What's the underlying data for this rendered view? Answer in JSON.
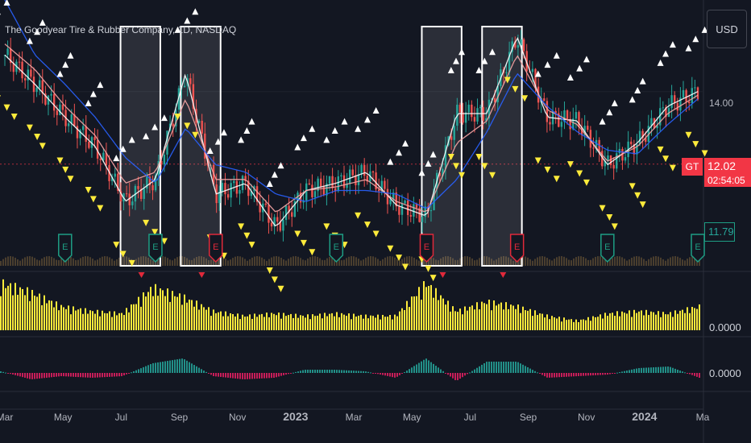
{
  "header": {
    "title": "The Goodyear Tire & Rubber Company, 1D, NASDAQ",
    "currency": "USD"
  },
  "price_axis": {
    "tick_label": "14.00",
    "bottom_scale_labels": [
      "0.0000",
      "0.0000"
    ],
    "badges": {
      "symbol": "GT",
      "last_price": "12.02",
      "countdown": "02:54:05",
      "ma_value": "11.79"
    }
  },
  "colors": {
    "background": "#131722",
    "candle_up": "#26a69a",
    "candle_down": "#ef5350",
    "volume": "#ffeb3b",
    "ma_white": "#ffffff",
    "ma_pink": "#f7a5a5",
    "ma_blue": "#2962ff",
    "earnings_green": "#1e9e84",
    "earnings_red": "#e0293a",
    "price_badge": "#f23645"
  },
  "chart_data": {
    "type": "line",
    "title": "The Goodyear Tire & Rubber Company, 1D, NASDAQ",
    "xlabel": "",
    "ylabel": "USD",
    "x_ticks": [
      "Mar",
      "May",
      "Jul",
      "Sep",
      "Nov",
      "2023",
      "Mar",
      "May",
      "Jul",
      "Sep",
      "Nov",
      "2024",
      "Ma"
    ],
    "y_ticks": [
      14.0
    ],
    "ylim": [
      9.2,
      16.5
    ],
    "x": [
      "2022-03",
      "2022-04",
      "2022-05",
      "2022-06",
      "2022-07",
      "2022-08",
      "2022-09",
      "2022-10",
      "2022-11",
      "2022-12",
      "2023-01",
      "2023-02",
      "2023-03",
      "2023-04",
      "2023-05",
      "2023-06",
      "2023-07",
      "2023-08",
      "2023-09",
      "2023-10",
      "2023-11",
      "2023-12",
      "2024-01",
      "2024-02"
    ],
    "series": [
      {
        "values": [
          15.0,
          14.2,
          13.3,
          12.5,
          11.0,
          11.6,
          14.5,
          11.2,
          11.5,
          10.3,
          11.3,
          11.5,
          11.8,
          10.9,
          10.6,
          13.4,
          13.4,
          15.5,
          13.3,
          13.2,
          12.0,
          12.6,
          13.6,
          14.0
        ]
      },
      {
        "values": [
          15.3,
          14.6,
          13.6,
          12.8,
          11.5,
          11.8,
          13.8,
          11.6,
          11.6,
          10.7,
          11.3,
          11.4,
          11.6,
          11.0,
          10.7,
          12.6,
          13.2,
          15.0,
          13.5,
          13.1,
          12.1,
          12.5,
          13.4,
          13.9
        ]
      },
      {
        "values": [
          16.5,
          15.0,
          14.2,
          13.3,
          12.2,
          11.5,
          13.0,
          12.0,
          11.8,
          11.2,
          11.0,
          11.3,
          11.3,
          11.2,
          10.8,
          11.6,
          12.9,
          14.5,
          13.6,
          12.9,
          12.4,
          12.3,
          13.1,
          13.8
        ]
      }
    ],
    "last_price": 12.02,
    "ma_last": 11.79,
    "highlight_boxes": [
      {
        "from": "2022-07",
        "to": "2022-08"
      },
      {
        "from": "2022-09",
        "to": "2022-10"
      },
      {
        "from": "2023-05",
        "to": "2023-06"
      },
      {
        "from": "2023-07",
        "to": "2023-08"
      }
    ],
    "earnings": [
      {
        "date": "2022-05",
        "kind": "green"
      },
      {
        "date": "2022-08",
        "kind": "green"
      },
      {
        "date": "2022-10",
        "kind": "red"
      },
      {
        "date": "2023-02",
        "kind": "green"
      },
      {
        "date": "2023-05",
        "kind": "red"
      },
      {
        "date": "2023-08",
        "kind": "red"
      },
      {
        "date": "2023-11",
        "kind": "green"
      },
      {
        "date": "2024-02",
        "kind": "green"
      }
    ],
    "volume_profile": [
      1.0,
      0.8,
      0.5,
      0.4,
      0.35,
      0.9,
      0.7,
      0.4,
      0.3,
      0.35,
      0.3,
      0.35,
      0.3,
      0.3,
      1.0,
      0.4,
      0.6,
      0.5,
      0.3,
      0.2,
      0.35,
      0.4,
      0.35,
      0.5
    ],
    "oscillator": [
      0.1,
      -0.4,
      -0.2,
      -0.3,
      -0.2,
      0.6,
      0.9,
      -0.2,
      -0.4,
      -0.3,
      0.2,
      0.2,
      0.1,
      -0.3,
      0.9,
      -0.5,
      0.7,
      0.7,
      -0.3,
      -0.2,
      -0.1,
      0.3,
      0.4,
      -0.3
    ]
  }
}
